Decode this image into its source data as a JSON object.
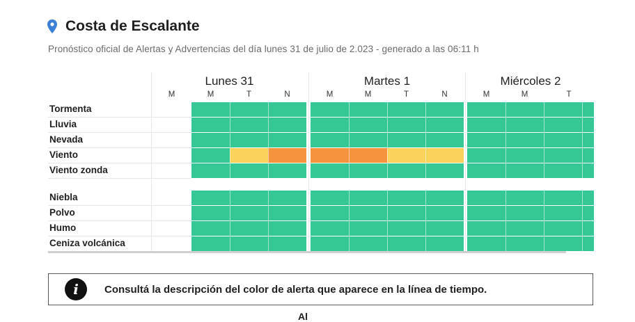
{
  "header": {
    "icon": "map-pin-icon",
    "location": "Costa de Escalante",
    "subtitle": "Pronóstico oficial de Alertas y Advertencias del día lunes 31 de julio de 2.023 - generado a las 06:11 h"
  },
  "timeline": {
    "days": [
      {
        "label": "Lunes 31",
        "slots": [
          "M",
          "M",
          "T",
          "N"
        ]
      },
      {
        "label": "Martes 1",
        "slots": [
          "M",
          "M",
          "T",
          "N"
        ]
      },
      {
        "label": "Miércoles 2",
        "slots": [
          "M",
          "M",
          "T"
        ]
      }
    ],
    "colors": {
      "green": "#35c794",
      "yellow": "#fbd25b",
      "orange": "#f5933f"
    },
    "rows": [
      {
        "label": "Tormenta",
        "levels": [
          "none",
          "green",
          "green",
          "green",
          "green",
          "green",
          "green",
          "green",
          "green",
          "green",
          "green"
        ]
      },
      {
        "label": "Lluvia",
        "levels": [
          "none",
          "green",
          "green",
          "green",
          "green",
          "green",
          "green",
          "green",
          "green",
          "green",
          "green"
        ]
      },
      {
        "label": "Nevada",
        "levels": [
          "none",
          "green",
          "green",
          "green",
          "green",
          "green",
          "green",
          "green",
          "green",
          "green",
          "green"
        ]
      },
      {
        "label": "Viento",
        "levels": [
          "none",
          "green",
          "yellow",
          "orange",
          "orange",
          "orange",
          "yellow",
          "yellow",
          "green",
          "green",
          "green"
        ]
      },
      {
        "label": "Viento zonda",
        "levels": [
          "none",
          "green",
          "green",
          "green",
          "green",
          "green",
          "green",
          "green",
          "green",
          "green",
          "green"
        ]
      },
      {
        "label": "Niebla",
        "levels": [
          "none",
          "green",
          "green",
          "green",
          "green",
          "green",
          "green",
          "green",
          "green",
          "green",
          "green"
        ]
      },
      {
        "label": "Polvo",
        "levels": [
          "none",
          "green",
          "green",
          "green",
          "green",
          "green",
          "green",
          "green",
          "green",
          "green",
          "green"
        ]
      },
      {
        "label": "Humo",
        "levels": [
          "none",
          "green",
          "green",
          "green",
          "green",
          "green",
          "green",
          "green",
          "green",
          "green",
          "green"
        ]
      },
      {
        "label": "Ceniza volcánica",
        "levels": [
          "none",
          "green",
          "green",
          "green",
          "green",
          "green",
          "green",
          "green",
          "green",
          "green",
          "green"
        ]
      }
    ]
  },
  "info": {
    "icon": "info-icon",
    "icon_glyph": "i",
    "text": "Consultá la descripción del color de alerta que aparece en la línea de tiempo."
  },
  "footer_fragment": "Al"
}
